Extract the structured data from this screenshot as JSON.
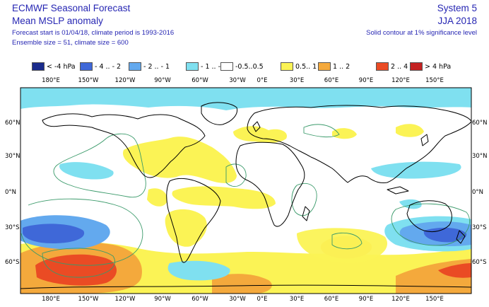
{
  "header": {
    "title": "ECMWF Seasonal Forecast",
    "subtitle": "Mean MSLP anomaly",
    "line1": "Forecast start is 01/04/18, climate period is 1993-2016",
    "line2": "Ensemble size = 51, climate size = 600",
    "system": "System 5",
    "season": "JJA 2018",
    "note": "Solid contour at 1% significance level"
  },
  "legend": [
    {
      "label": "< -4 hPa",
      "color": "#1a2b8c"
    },
    {
      "label": "- 4 .. - 2",
      "color": "#3f68d8"
    },
    {
      "label": "- 2 .. - 1",
      "color": "#63a9ee"
    },
    {
      "label": "- 1 .. -0.5",
      "color": "#7fe0f0"
    },
    {
      "label": "-0.5..0.5",
      "color": "#ffffff"
    },
    {
      "label": "0.5.. 1",
      "color": "#fbf355"
    },
    {
      "label": "1 .. 2",
      "color": "#f4a93c"
    },
    {
      "label": "2 .. 4",
      "color": "#ea4b24"
    },
    {
      "label": "> 4 hPa",
      "color": "#c42222"
    }
  ],
  "axes": {
    "lon_ticks": [
      "180°E",
      "150°W",
      "120°W",
      "90°W",
      "60°W",
      "30°W",
      "0°E",
      "30°E",
      "60°E",
      "90°E",
      "120°E",
      "150°E"
    ],
    "lat_ticks_left": [
      "60°N",
      "30°N",
      "0°N",
      "30°S",
      "60°S"
    ],
    "lat_ticks_right": [
      "60°N",
      "30°N",
      "0°N",
      "30°S",
      "60°S"
    ]
  },
  "colors": {
    "text": "#2626b3",
    "coast": "#000000",
    "contour": "#3a9a6a"
  }
}
